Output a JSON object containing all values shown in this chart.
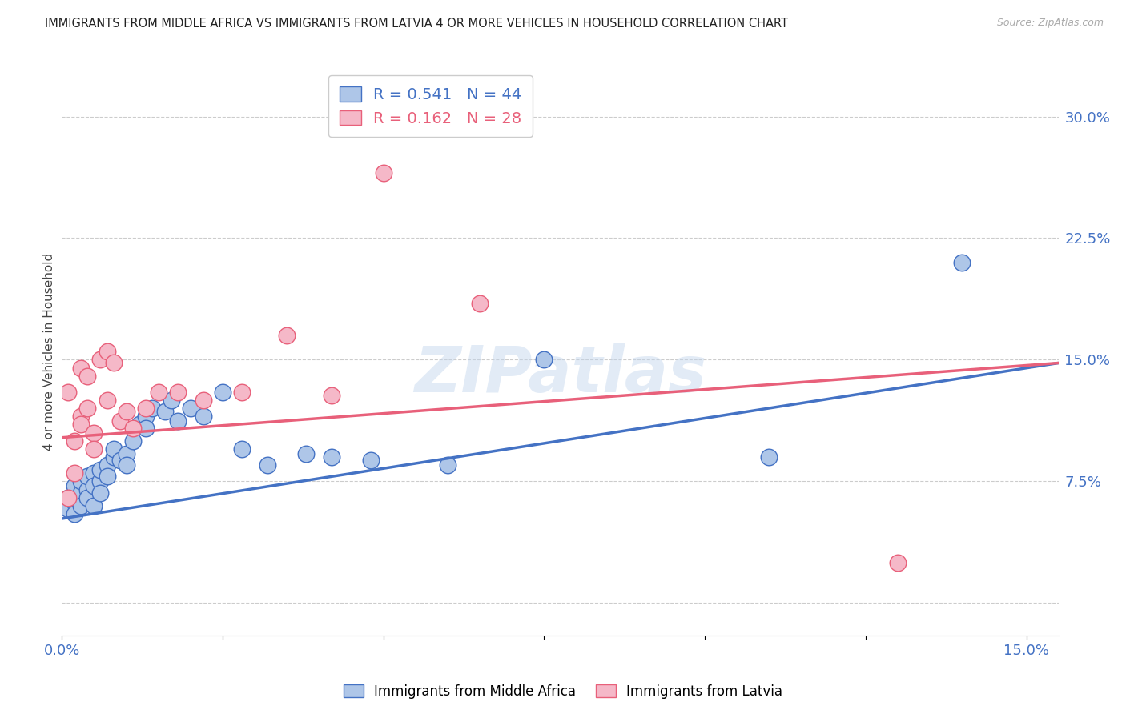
{
  "title": "IMMIGRANTS FROM MIDDLE AFRICA VS IMMIGRANTS FROM LATVIA 4 OR MORE VEHICLES IN HOUSEHOLD CORRELATION CHART",
  "source": "Source: ZipAtlas.com",
  "ylabel": "4 or more Vehicles in Household",
  "xlim": [
    0.0,
    0.155
  ],
  "ylim": [
    -0.02,
    0.33
  ],
  "xticks": [
    0.0,
    0.025,
    0.05,
    0.075,
    0.1,
    0.125,
    0.15
  ],
  "yticks_right": [
    0.0,
    0.075,
    0.15,
    0.225,
    0.3
  ],
  "ytick_labels_right": [
    "",
    "7.5%",
    "15.0%",
    "22.5%",
    "30.0%"
  ],
  "xtick_labels": [
    "0.0%",
    "",
    "",
    "",
    "",
    "",
    "15.0%"
  ],
  "blue_R": 0.541,
  "blue_N": 44,
  "pink_R": 0.162,
  "pink_N": 28,
  "blue_color": "#aec6e8",
  "blue_line_color": "#4472c4",
  "pink_color": "#f5b8c8",
  "pink_line_color": "#e8607a",
  "legend_label1": "Immigrants from Middle Africa",
  "legend_label2": "Immigrants from Latvia",
  "watermark": "ZIPatlas",
  "blue_scatter_x": [
    0.001,
    0.001,
    0.002,
    0.002,
    0.002,
    0.003,
    0.003,
    0.003,
    0.004,
    0.004,
    0.004,
    0.005,
    0.005,
    0.005,
    0.006,
    0.006,
    0.006,
    0.007,
    0.007,
    0.008,
    0.008,
    0.009,
    0.01,
    0.01,
    0.011,
    0.012,
    0.013,
    0.013,
    0.014,
    0.016,
    0.017,
    0.018,
    0.02,
    0.022,
    0.025,
    0.028,
    0.032,
    0.038,
    0.042,
    0.048,
    0.06,
    0.075,
    0.11,
    0.14
  ],
  "blue_scatter_y": [
    0.065,
    0.058,
    0.072,
    0.062,
    0.055,
    0.068,
    0.06,
    0.075,
    0.07,
    0.078,
    0.065,
    0.08,
    0.072,
    0.06,
    0.075,
    0.082,
    0.068,
    0.085,
    0.078,
    0.09,
    0.095,
    0.088,
    0.092,
    0.085,
    0.1,
    0.11,
    0.115,
    0.108,
    0.12,
    0.118,
    0.125,
    0.112,
    0.12,
    0.115,
    0.13,
    0.095,
    0.085,
    0.092,
    0.09,
    0.088,
    0.085,
    0.15,
    0.09,
    0.21
  ],
  "pink_scatter_x": [
    0.001,
    0.001,
    0.002,
    0.002,
    0.003,
    0.003,
    0.003,
    0.004,
    0.004,
    0.005,
    0.005,
    0.006,
    0.007,
    0.007,
    0.008,
    0.009,
    0.01,
    0.011,
    0.013,
    0.015,
    0.018,
    0.022,
    0.028,
    0.035,
    0.042,
    0.05,
    0.065,
    0.13
  ],
  "pink_scatter_y": [
    0.13,
    0.065,
    0.1,
    0.08,
    0.115,
    0.11,
    0.145,
    0.14,
    0.12,
    0.105,
    0.095,
    0.15,
    0.155,
    0.125,
    0.148,
    0.112,
    0.118,
    0.108,
    0.12,
    0.13,
    0.13,
    0.125,
    0.13,
    0.165,
    0.128,
    0.265,
    0.185,
    0.025
  ],
  "blue_trendline_x": [
    0.0,
    0.155
  ],
  "blue_trendline_y": [
    0.052,
    0.148
  ],
  "pink_trendline_x": [
    0.0,
    0.155
  ],
  "pink_trendline_y": [
    0.102,
    0.148
  ]
}
